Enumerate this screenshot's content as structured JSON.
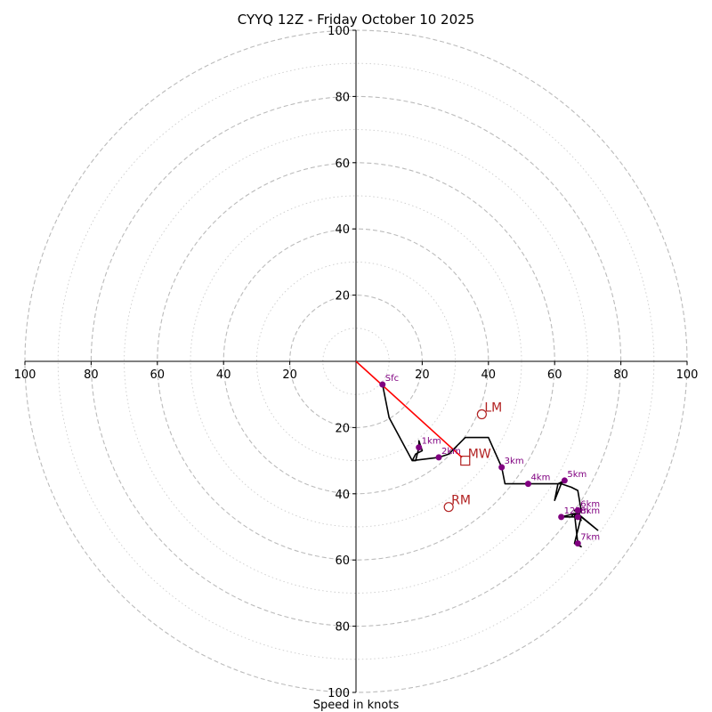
{
  "chart_data": {
    "type": "hodograph",
    "title": "CYYQ 12Z - Friday October 10 2025",
    "xlabel": "Speed in knots",
    "ylabel": "",
    "xlim": [
      -100,
      100
    ],
    "ylim": [
      -100,
      100
    ],
    "ring_major": [
      20,
      40,
      60,
      80,
      100
    ],
    "ring_minor": [
      10,
      30,
      50,
      70,
      90
    ],
    "x_tick_labels": [
      "100",
      "80",
      "60",
      "40",
      "20",
      "20",
      "40",
      "60",
      "80",
      "100"
    ],
    "y_tick_labels_top": [
      "20",
      "40",
      "60",
      "80",
      "100"
    ],
    "y_tick_labels_bottom": [
      "20",
      "40",
      "60",
      "80",
      "100"
    ],
    "trace": {
      "x": [
        8,
        10,
        17,
        18,
        20,
        19,
        19,
        18,
        17,
        25,
        28,
        33,
        40,
        44,
        45,
        45,
        52,
        55,
        62,
        63,
        61,
        60,
        62,
        65,
        67,
        68,
        67,
        66,
        67,
        68,
        66,
        68,
        73,
        67,
        66,
        67,
        68,
        67,
        64,
        62,
        66,
        67,
        66,
        65
      ],
      "y": [
        -7,
        -17,
        -30,
        -28,
        -27,
        -24,
        -26,
        -30,
        -30,
        -29,
        -28,
        -23,
        -23,
        -32,
        -37,
        -37,
        -37,
        -37,
        -37,
        -36,
        -37,
        -42,
        -37,
        -38,
        -39,
        -45,
        -47,
        -46,
        -55,
        -56,
        -55,
        -47,
        -51,
        -46,
        -45,
        -46,
        -48,
        -47,
        -47,
        -47,
        -46,
        -46,
        -46,
        -47
      ]
    },
    "height_markers": [
      {
        "label": "Sfc",
        "x": 8,
        "y": -7
      },
      {
        "label": "1km",
        "x": 19,
        "y": -26
      },
      {
        "label": "2km",
        "x": 25,
        "y": -29
      },
      {
        "label": "3km",
        "x": 44,
        "y": -32
      },
      {
        "label": "4km",
        "x": 52,
        "y": -37
      },
      {
        "label": "5km",
        "x": 63,
        "y": -36
      },
      {
        "label": "6km",
        "x": 67,
        "y": -45
      },
      {
        "label": "7km",
        "x": 67,
        "y": -55
      },
      {
        "label": "8km",
        "x": 67,
        "y": -47
      },
      {
        "label": "12km",
        "x": 62,
        "y": -47
      }
    ],
    "storm_motion": [
      {
        "label": "LM",
        "x": 38,
        "y": -16,
        "marker": "circle"
      },
      {
        "label": "MW",
        "x": 33,
        "y": -30,
        "marker": "square"
      },
      {
        "label": "RM",
        "x": 28,
        "y": -44,
        "marker": "circle"
      }
    ],
    "shear_vector": {
      "x0": 0,
      "y0": 0,
      "x1": 32,
      "y1": -29
    },
    "colors": {
      "trace": "#000000",
      "marker": "#800080",
      "storm": "#b22222",
      "shear": "#ff0000",
      "ring": "#bbbbbb",
      "axis": "#000000"
    }
  }
}
